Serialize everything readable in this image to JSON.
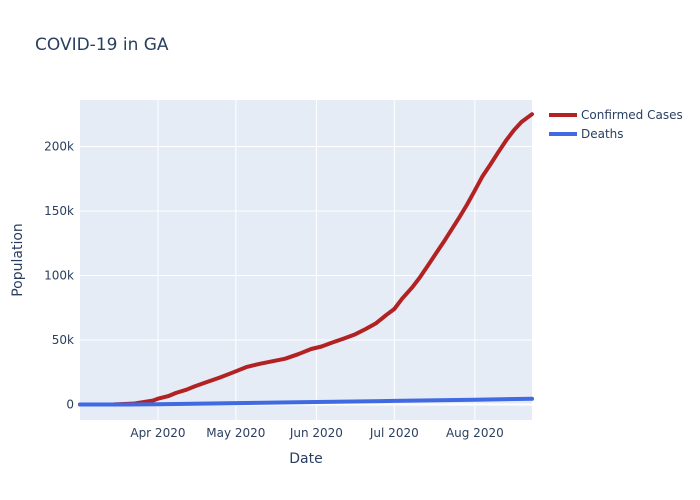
{
  "chart_data": {
    "type": "line",
    "title": "COVID-19 in GA",
    "xlabel": "Date",
    "ylabel": "Population",
    "xlim": [
      "2020-03-02",
      "2020-08-23"
    ],
    "ylim": [
      -12000,
      236000
    ],
    "x_ticks": [
      {
        "date": "2020-04-01",
        "label": "Apr 2020"
      },
      {
        "date": "2020-05-01",
        "label": "May 2020"
      },
      {
        "date": "2020-06-01",
        "label": "Jun 2020"
      },
      {
        "date": "2020-07-01",
        "label": "Jul 2020"
      },
      {
        "date": "2020-08-01",
        "label": "Aug 2020"
      }
    ],
    "y_ticks": [
      {
        "value": 0,
        "label": "0"
      },
      {
        "value": 50000,
        "label": "50k"
      },
      {
        "value": 100000,
        "label": "100k"
      },
      {
        "value": 150000,
        "label": "150k"
      },
      {
        "value": 200000,
        "label": "200k"
      }
    ],
    "grid": true,
    "legend_position": "top-right",
    "series": [
      {
        "name": "Confirmed Cases",
        "color": "#b22222",
        "points": [
          [
            "2020-03-02",
            0
          ],
          [
            "2020-03-10",
            50
          ],
          [
            "2020-03-15",
            100
          ],
          [
            "2020-03-20",
            500
          ],
          [
            "2020-03-23",
            800
          ],
          [
            "2020-03-27",
            2000
          ],
          [
            "2020-03-30",
            3000
          ],
          [
            "2020-04-01",
            4500
          ],
          [
            "2020-04-05",
            6500
          ],
          [
            "2020-04-08",
            9000
          ],
          [
            "2020-04-12",
            11500
          ],
          [
            "2020-04-15",
            14000
          ],
          [
            "2020-04-20",
            17500
          ],
          [
            "2020-04-25",
            21000
          ],
          [
            "2020-04-30",
            25000
          ],
          [
            "2020-05-05",
            29000
          ],
          [
            "2020-05-10",
            31500
          ],
          [
            "2020-05-15",
            33500
          ],
          [
            "2020-05-20",
            35500
          ],
          [
            "2020-05-25",
            39000
          ],
          [
            "2020-05-30",
            43000
          ],
          [
            "2020-06-03",
            45000
          ],
          [
            "2020-06-07",
            48000
          ],
          [
            "2020-06-12",
            51500
          ],
          [
            "2020-06-16",
            54500
          ],
          [
            "2020-06-20",
            58500
          ],
          [
            "2020-06-24",
            63000
          ],
          [
            "2020-06-28",
            69500
          ],
          [
            "2020-07-01",
            74000
          ],
          [
            "2020-07-04",
            82000
          ],
          [
            "2020-07-08",
            91000
          ],
          [
            "2020-07-11",
            99000
          ],
          [
            "2020-07-14",
            108000
          ],
          [
            "2020-07-17",
            117000
          ],
          [
            "2020-07-20",
            126000
          ],
          [
            "2020-07-23",
            135500
          ],
          [
            "2020-07-26",
            145000
          ],
          [
            "2020-07-29",
            155000
          ],
          [
            "2020-08-01",
            166000
          ],
          [
            "2020-08-04",
            177000
          ],
          [
            "2020-08-07",
            186000
          ],
          [
            "2020-08-10",
            195500
          ],
          [
            "2020-08-13",
            204500
          ],
          [
            "2020-08-16",
            212500
          ],
          [
            "2020-08-19",
            219000
          ],
          [
            "2020-08-23",
            225000
          ]
        ]
      },
      {
        "name": "Deaths",
        "color": "#4169e1",
        "points": [
          [
            "2020-03-02",
            0
          ],
          [
            "2020-03-20",
            50
          ],
          [
            "2020-04-01",
            200
          ],
          [
            "2020-05-01",
            1100
          ],
          [
            "2020-06-01",
            1950
          ],
          [
            "2020-07-01",
            2800
          ],
          [
            "2020-08-01",
            3700
          ],
          [
            "2020-08-23",
            4400
          ]
        ]
      }
    ]
  }
}
